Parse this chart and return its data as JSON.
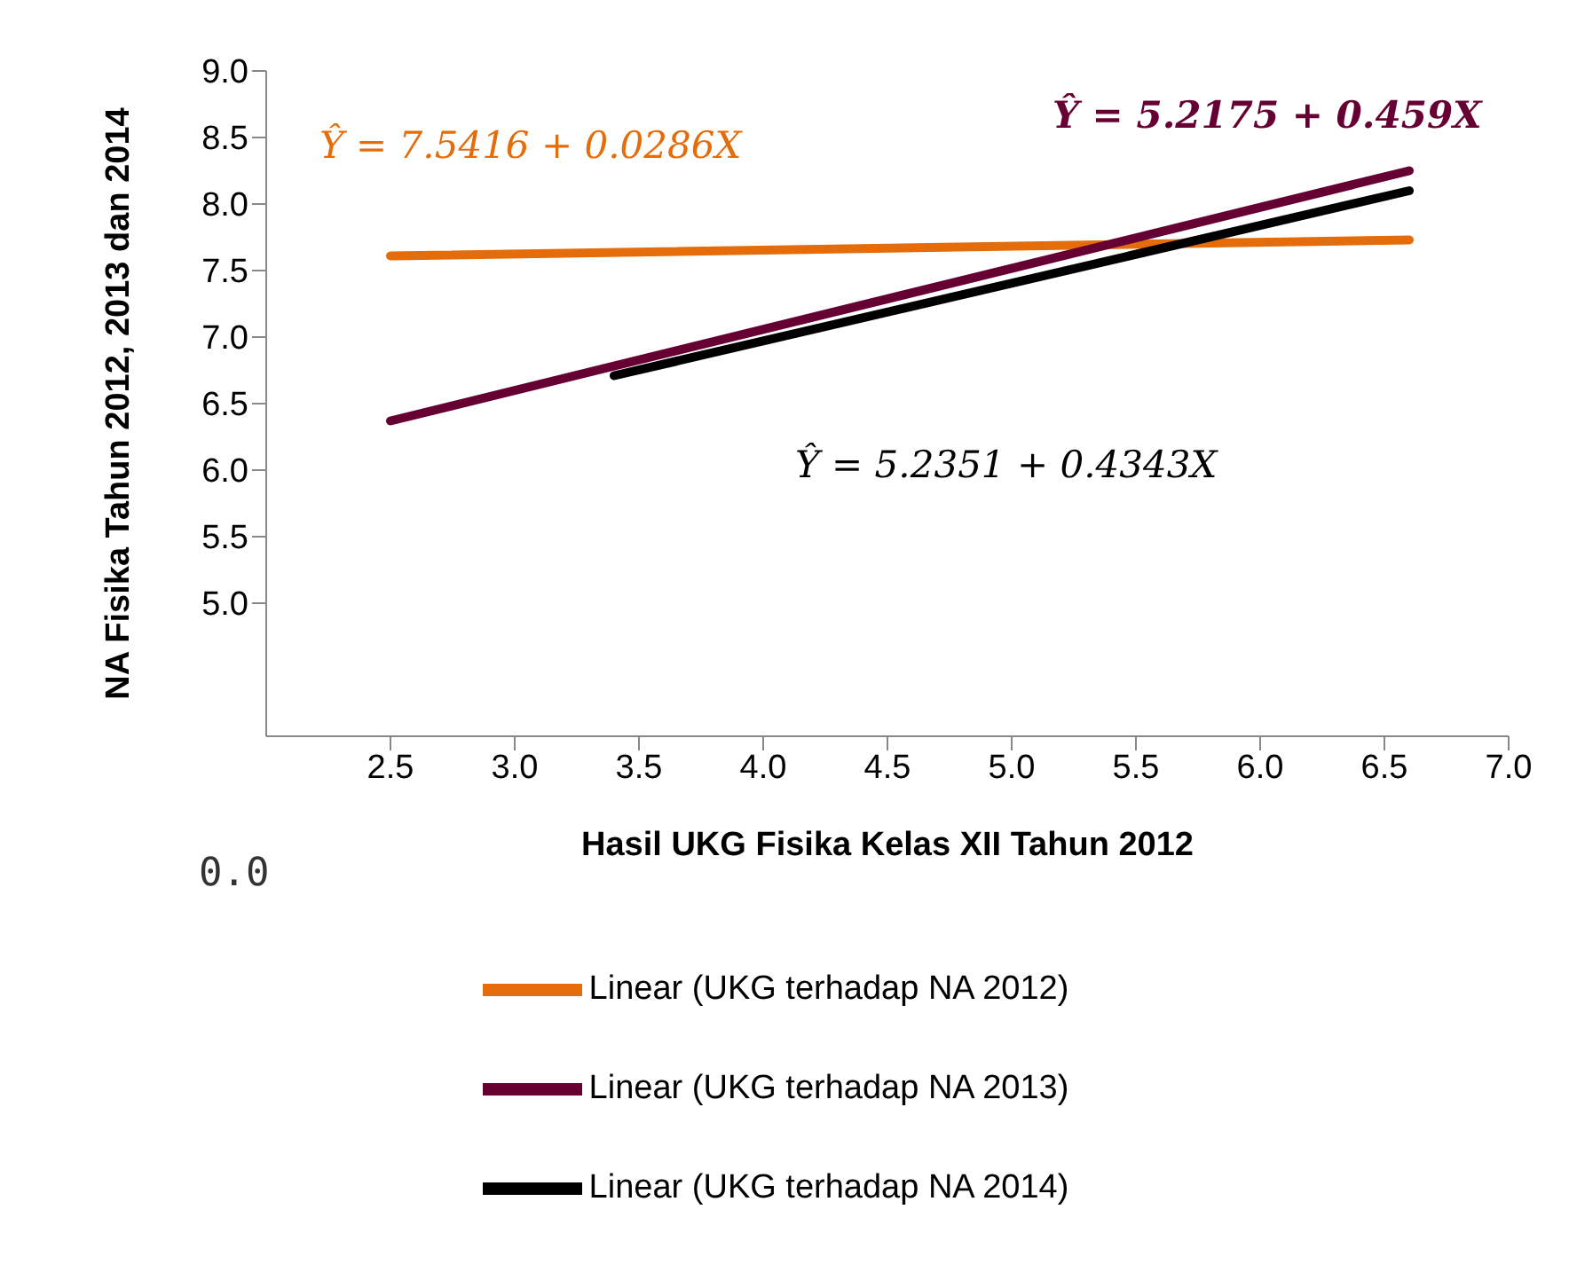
{
  "chart_data": {
    "type": "line",
    "xlabel": "Hasil UKG Fisika Kelas XII Tahun 2012",
    "ylabel": "NA Fisika Tahun 2012, 2013 dan 2014",
    "xlim": [
      2.0,
      7.0
    ],
    "xticks": [
      2.5,
      {
        "value": 3,
        "label": "3.0"
      },
      3.5,
      {
        "value": 4,
        "label": "4.0"
      },
      4.5,
      {
        "value": 5,
        "label": "5.0"
      },
      5.5,
      {
        "value": 6,
        "label": "6.0"
      },
      6.5,
      {
        "value": 7,
        "label": "7.0"
      }
    ],
    "ylim": [
      4.0,
      9.0
    ],
    "yticks": [
      {
        "value": 5,
        "label": "5.0"
      },
      5.5,
      {
        "value": 6,
        "label": "6.0"
      },
      6.5,
      {
        "value": 7,
        "label": "7.0"
      },
      7.5,
      {
        "value": 8,
        "label": "8.0"
      },
      8.5,
      {
        "value": 9,
        "label": "9.0"
      }
    ],
    "grid": false,
    "legend": "bottom",
    "marker": "none",
    "line_style": "solid",
    "series": [
      {
        "name": "Linear (UKG terhadap NA 2012)",
        "color": "#e46c0a",
        "x": [
          2.5,
          6.6
        ],
        "values": [
          7.61,
          7.73
        ]
      },
      {
        "name": "Linear (UKG terhadap NA 2013)",
        "color": "#660033",
        "x": [
          2.5,
          6.6
        ],
        "values": [
          6.37,
          8.25
        ]
      },
      {
        "name": "Linear (UKG terhadap NA 2014)",
        "color": "#000000",
        "x": [
          3.4,
          6.6
        ],
        "values": [
          6.71,
          8.1
        ]
      }
    ],
    "annotations": [
      "Ŷ = 7.5416 + 0.0286X",
      "Ŷ = 5.2175 + 0.459X",
      "Ŷ = 5.2351 + 0.4343X",
      "0.0"
    ]
  }
}
